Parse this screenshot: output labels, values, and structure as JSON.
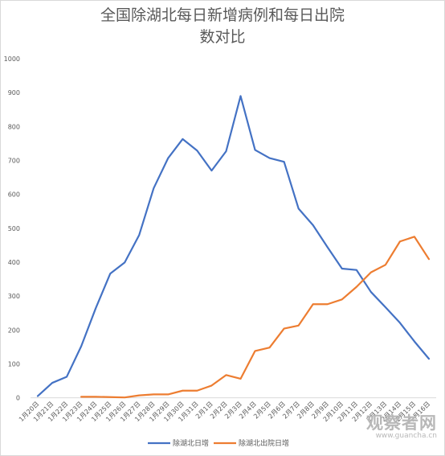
{
  "chart_data": {
    "type": "line",
    "title_lines": [
      "全国除湖北每日新增病例和每日出院",
      "数对比"
    ],
    "xlabel": "",
    "ylabel": "",
    "ylim": [
      0,
      1000
    ],
    "yticks": [
      0,
      100,
      200,
      300,
      400,
      500,
      600,
      700,
      800,
      900,
      1000
    ],
    "grid": false,
    "legend_position": "bottom",
    "categories": [
      "1月20日",
      "1月21日",
      "1月22日",
      "1月23日",
      "1月24日",
      "1月25日",
      "1月26日",
      "1月27日",
      "1月28日",
      "1月29日",
      "1月30日",
      "1月31日",
      "2月1日",
      "2月2日",
      "2月3日",
      "2月4日",
      "2月5日",
      "2月6日",
      "2月7日",
      "2月8日",
      "2月9日",
      "2月10日",
      "2月11日",
      "2月12日",
      "2月13日",
      "2月14日",
      "2月15日",
      "2月16日"
    ],
    "xtick_labels": [
      "1月20日",
      "1月21日",
      "1月22日",
      "1月23日",
      "1月24日",
      "1月25日",
      "1月26日",
      "1月27日",
      "1月28日",
      "1月29日",
      "1月30日",
      "1月31日",
      "2月1日",
      "2月2日",
      "2月3日",
      "2月4日",
      "2月5日",
      "2月6日",
      "2月7日",
      "2月8日",
      "2月9日",
      "2月10日",
      "2月11日",
      "2月12日",
      "2月13日",
      "2月14日",
      "2月15日",
      "2月16日"
    ],
    "series": [
      {
        "name": "除湖北日增",
        "color": "#4472C4",
        "values": [
          5,
          44,
          62,
          152,
          264,
          366,
          399,
          480,
          618,
          707,
          763,
          729,
          670,
          727,
          890,
          731,
          707,
          696,
          558,
          509,
          444,
          381,
          377,
          312,
          267,
          221,
          166,
          115
        ]
      },
      {
        "name": "除湖北出院日增",
        "color": "#ED7D31",
        "values": [
          null,
          null,
          null,
          3,
          3,
          2,
          1,
          7,
          10,
          10,
          21,
          21,
          36,
          67,
          56,
          138,
          148,
          204,
          213,
          276,
          276,
          290,
          327,
          370,
          392,
          461,
          475,
          409
        ]
      }
    ]
  },
  "watermark": {
    "main": "观察者网",
    "sub": "www.guancha.cn"
  }
}
